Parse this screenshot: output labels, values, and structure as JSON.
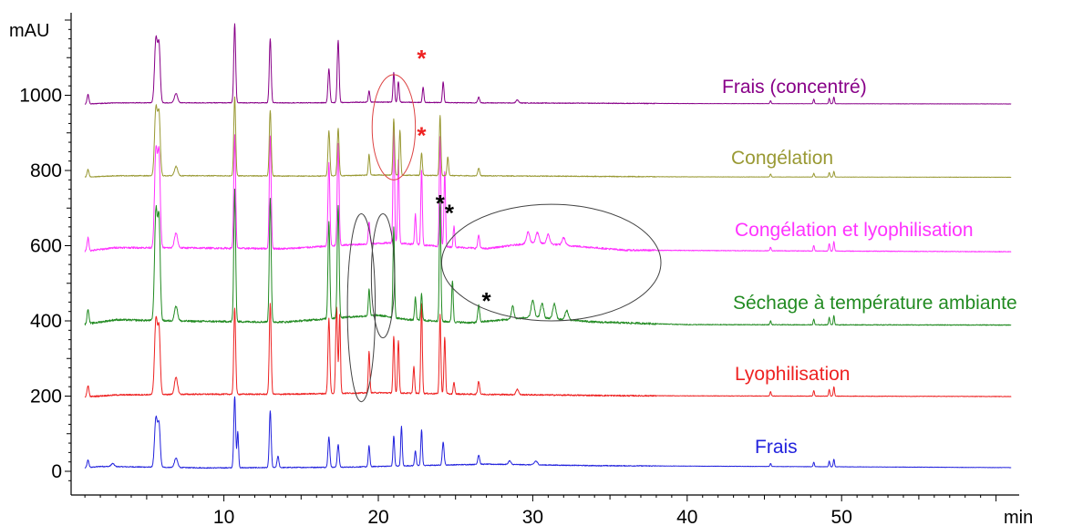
{
  "chart_data": {
    "type": "line",
    "xunit": "min",
    "yunit": "mAU",
    "xlim": [
      0,
      60
    ],
    "ylim": [
      -30,
      1250
    ],
    "xticks": [
      10,
      20,
      30,
      40,
      50
    ],
    "yticks": [
      0,
      200,
      400,
      600,
      800,
      1000
    ],
    "series": [
      {
        "name": "Frais",
        "color": "#2222dd",
        "baseline": 5,
        "drift": [
          [
            0,
            0
          ],
          [
            2,
            8
          ],
          [
            9,
            4
          ],
          [
            18,
            6
          ],
          [
            20,
            8
          ],
          [
            27,
            14
          ],
          [
            34,
            10
          ],
          [
            60,
            5
          ]
        ],
        "peaks": [
          [
            1.2,
            20,
            0.06
          ],
          [
            2.8,
            8,
            0.1
          ],
          [
            5.6,
            130,
            0.09
          ],
          [
            5.8,
            110,
            0.08
          ],
          [
            6.9,
            25,
            0.1
          ],
          [
            10.7,
            190,
            0.06
          ],
          [
            10.9,
            95,
            0.05
          ],
          [
            13.0,
            150,
            0.06
          ],
          [
            13.5,
            30,
            0.06
          ],
          [
            16.8,
            80,
            0.06
          ],
          [
            17.4,
            60,
            0.06
          ],
          [
            19.4,
            55,
            0.05
          ],
          [
            21.0,
            80,
            0.05
          ],
          [
            21.5,
            105,
            0.05
          ],
          [
            22.4,
            40,
            0.05
          ],
          [
            22.8,
            95,
            0.05
          ],
          [
            24.2,
            60,
            0.06
          ],
          [
            26.5,
            25,
            0.06
          ],
          [
            28.5,
            10,
            0.08
          ],
          [
            30.2,
            10,
            0.1
          ],
          [
            45.4,
            8,
            0.04
          ],
          [
            48.2,
            12,
            0.04
          ],
          [
            49.2,
            15,
            0.04
          ],
          [
            49.5,
            20,
            0.04
          ]
        ],
        "noise": 1.5
      },
      {
        "name": "Lyophilisation",
        "color": "#ee2222",
        "baseline": 195,
        "drift": [
          [
            0,
            0
          ],
          [
            3,
            8
          ],
          [
            8,
            10
          ],
          [
            14,
            10
          ],
          [
            20,
            14
          ],
          [
            26,
            10
          ],
          [
            36,
            6
          ],
          [
            60,
            4
          ]
        ],
        "peaks": [
          [
            1.2,
            30,
            0.06
          ],
          [
            5.6,
            200,
            0.09
          ],
          [
            5.8,
            170,
            0.08
          ],
          [
            6.9,
            45,
            0.1
          ],
          [
            10.7,
            230,
            0.06
          ],
          [
            13.0,
            240,
            0.06
          ],
          [
            16.8,
            200,
            0.06
          ],
          [
            17.3,
            230,
            0.06
          ],
          [
            17.5,
            210,
            0.05
          ],
          [
            19.4,
            110,
            0.05
          ],
          [
            21.0,
            150,
            0.05
          ],
          [
            21.3,
            140,
            0.05
          ],
          [
            22.3,
            70,
            0.05
          ],
          [
            22.8,
            240,
            0.05
          ],
          [
            24.0,
            210,
            0.05
          ],
          [
            24.3,
            150,
            0.05
          ],
          [
            24.9,
            30,
            0.05
          ],
          [
            26.5,
            35,
            0.06
          ],
          [
            29.0,
            15,
            0.08
          ],
          [
            45.4,
            12,
            0.04
          ],
          [
            48.2,
            15,
            0.04
          ],
          [
            49.2,
            18,
            0.04
          ],
          [
            49.5,
            25,
            0.04
          ]
        ],
        "noise": 2.2
      },
      {
        "name": "Séchage à température ambiante",
        "color": "#228b22",
        "baseline": 385,
        "drift": [
          [
            0,
            0
          ],
          [
            3,
            18
          ],
          [
            8,
            14
          ],
          [
            14,
            12
          ],
          [
            18,
            25
          ],
          [
            20,
            30
          ],
          [
            22,
            18
          ],
          [
            26,
            10
          ],
          [
            30,
            25
          ],
          [
            34,
            12
          ],
          [
            40,
            5
          ],
          [
            60,
            4
          ]
        ],
        "peaks": [
          [
            1.2,
            40,
            0.06
          ],
          [
            5.6,
            290,
            0.09
          ],
          [
            5.8,
            260,
            0.08
          ],
          [
            6.9,
            40,
            0.1
          ],
          [
            10.7,
            350,
            0.06
          ],
          [
            13.0,
            330,
            0.06
          ],
          [
            16.8,
            260,
            0.06
          ],
          [
            17.4,
            300,
            0.06
          ],
          [
            19.4,
            70,
            0.05
          ],
          [
            21.0,
            240,
            0.05
          ],
          [
            22.4,
            60,
            0.05
          ],
          [
            22.8,
            70,
            0.05
          ],
          [
            24.0,
            320,
            0.05
          ],
          [
            24.8,
            110,
            0.05
          ],
          [
            26.5,
            45,
            0.06
          ],
          [
            28.7,
            35,
            0.08
          ],
          [
            30.0,
            45,
            0.1
          ],
          [
            30.6,
            38,
            0.1
          ],
          [
            31.4,
            40,
            0.1
          ],
          [
            32.2,
            25,
            0.1
          ],
          [
            45.4,
            10,
            0.04
          ],
          [
            48.2,
            15,
            0.04
          ],
          [
            49.2,
            20,
            0.04
          ],
          [
            49.5,
            25,
            0.04
          ]
        ],
        "noise": 3.2
      },
      {
        "name": "Congélation et lyophilisation",
        "color": "#ff33ff",
        "baseline": 580,
        "drift": [
          [
            0,
            0
          ],
          [
            3,
            15
          ],
          [
            8,
            14
          ],
          [
            14,
            12
          ],
          [
            18,
            22
          ],
          [
            21,
            28
          ],
          [
            24,
            18
          ],
          [
            27,
            12
          ],
          [
            30,
            28
          ],
          [
            33,
            18
          ],
          [
            36,
            8
          ],
          [
            60,
            4
          ]
        ],
        "peaks": [
          [
            1.2,
            35,
            0.06
          ],
          [
            5.6,
            260,
            0.09
          ],
          [
            5.8,
            240,
            0.08
          ],
          [
            6.9,
            40,
            0.1
          ],
          [
            10.7,
            300,
            0.06
          ],
          [
            13.0,
            300,
            0.06
          ],
          [
            16.8,
            220,
            0.06
          ],
          [
            17.4,
            270,
            0.06
          ],
          [
            19.4,
            60,
            0.05
          ],
          [
            21.0,
            320,
            0.05
          ],
          [
            21.3,
            220,
            0.05
          ],
          [
            22.4,
            80,
            0.05
          ],
          [
            22.8,
            200,
            0.05
          ],
          [
            24.0,
            290,
            0.05
          ],
          [
            24.3,
            200,
            0.05
          ],
          [
            24.9,
            55,
            0.05
          ],
          [
            26.5,
            35,
            0.06
          ],
          [
            29.7,
            30,
            0.1
          ],
          [
            30.3,
            28,
            0.1
          ],
          [
            31.0,
            25,
            0.1
          ],
          [
            32.0,
            20,
            0.1
          ],
          [
            45.4,
            10,
            0.04
          ],
          [
            48.2,
            15,
            0.04
          ],
          [
            49.2,
            20,
            0.04
          ],
          [
            49.5,
            25,
            0.04
          ]
        ],
        "noise": 3
      },
      {
        "name": "Congélation",
        "color": "#999933",
        "baseline": 780,
        "drift": [
          [
            0,
            0
          ],
          [
            3,
            6
          ],
          [
            9,
            6
          ],
          [
            16,
            5
          ],
          [
            20,
            8
          ],
          [
            26,
            6
          ],
          [
            40,
            3
          ],
          [
            60,
            2
          ]
        ],
        "peaks": [
          [
            1.2,
            20,
            0.06
          ],
          [
            5.6,
            180,
            0.09
          ],
          [
            5.8,
            160,
            0.08
          ],
          [
            6.9,
            25,
            0.1
          ],
          [
            10.7,
            210,
            0.06
          ],
          [
            13.0,
            175,
            0.06
          ],
          [
            16.8,
            120,
            0.06
          ],
          [
            17.4,
            125,
            0.06
          ],
          [
            19.4,
            55,
            0.05
          ],
          [
            21.0,
            150,
            0.05
          ],
          [
            21.4,
            120,
            0.05
          ],
          [
            22.8,
            60,
            0.05
          ],
          [
            24.0,
            160,
            0.05
          ],
          [
            24.5,
            50,
            0.05
          ],
          [
            26.5,
            20,
            0.06
          ],
          [
            45.4,
            8,
            0.04
          ],
          [
            48.2,
            10,
            0.04
          ],
          [
            49.2,
            12,
            0.04
          ],
          [
            49.5,
            15,
            0.04
          ]
        ],
        "noise": 1.4
      },
      {
        "name": "Frais (concentré)",
        "color": "#880088",
        "baseline": 975,
        "drift": [
          [
            0,
            0
          ],
          [
            3,
            5
          ],
          [
            9,
            5
          ],
          [
            16,
            5
          ],
          [
            20,
            7
          ],
          [
            26,
            5
          ],
          [
            40,
            3
          ],
          [
            60,
            2
          ]
        ],
        "peaks": [
          [
            1.2,
            25,
            0.06
          ],
          [
            5.6,
            170,
            0.09
          ],
          [
            5.8,
            150,
            0.08
          ],
          [
            6.9,
            25,
            0.1
          ],
          [
            10.7,
            210,
            0.06
          ],
          [
            13.0,
            170,
            0.06
          ],
          [
            16.8,
            90,
            0.06
          ],
          [
            17.4,
            165,
            0.06
          ],
          [
            19.4,
            30,
            0.05
          ],
          [
            21.0,
            80,
            0.05
          ],
          [
            21.3,
            55,
            0.05
          ],
          [
            22.9,
            40,
            0.05
          ],
          [
            24.2,
            55,
            0.05
          ],
          [
            26.5,
            15,
            0.06
          ],
          [
            29.0,
            8,
            0.08
          ],
          [
            45.4,
            8,
            0.04
          ],
          [
            48.2,
            12,
            0.04
          ],
          [
            49.2,
            14,
            0.04
          ],
          [
            49.5,
            18,
            0.04
          ]
        ],
        "noise": 1.2
      }
    ],
    "annotations": {
      "stars": [
        {
          "text": "*",
          "x": 22.8,
          "y": 1110,
          "color": "#ee2222"
        },
        {
          "text": "*",
          "x": 22.8,
          "y": 905,
          "color": "#ee2222"
        },
        {
          "text": "*",
          "x": 24.0,
          "y": 725,
          "color": "#000000"
        },
        {
          "text": "*",
          "x": 24.6,
          "y": 700,
          "color": "#000000"
        },
        {
          "text": "*",
          "x": 27.0,
          "y": 465,
          "color": "#000000"
        }
      ],
      "ellipses": [
        {
          "cx": 21.0,
          "cy": 915,
          "rx": 1.4,
          "ry": 140,
          "color": "#dd4444"
        },
        {
          "cx": 18.9,
          "cy": 435,
          "rx": 0.9,
          "ry": 250,
          "color": "#444444"
        },
        {
          "cx": 20.3,
          "cy": 520,
          "rx": 0.75,
          "ry": 165,
          "color": "#444444"
        },
        {
          "cx": 31.2,
          "cy": 555,
          "rx": 7.1,
          "ry": 155,
          "color": "#444444"
        }
      ]
    }
  }
}
